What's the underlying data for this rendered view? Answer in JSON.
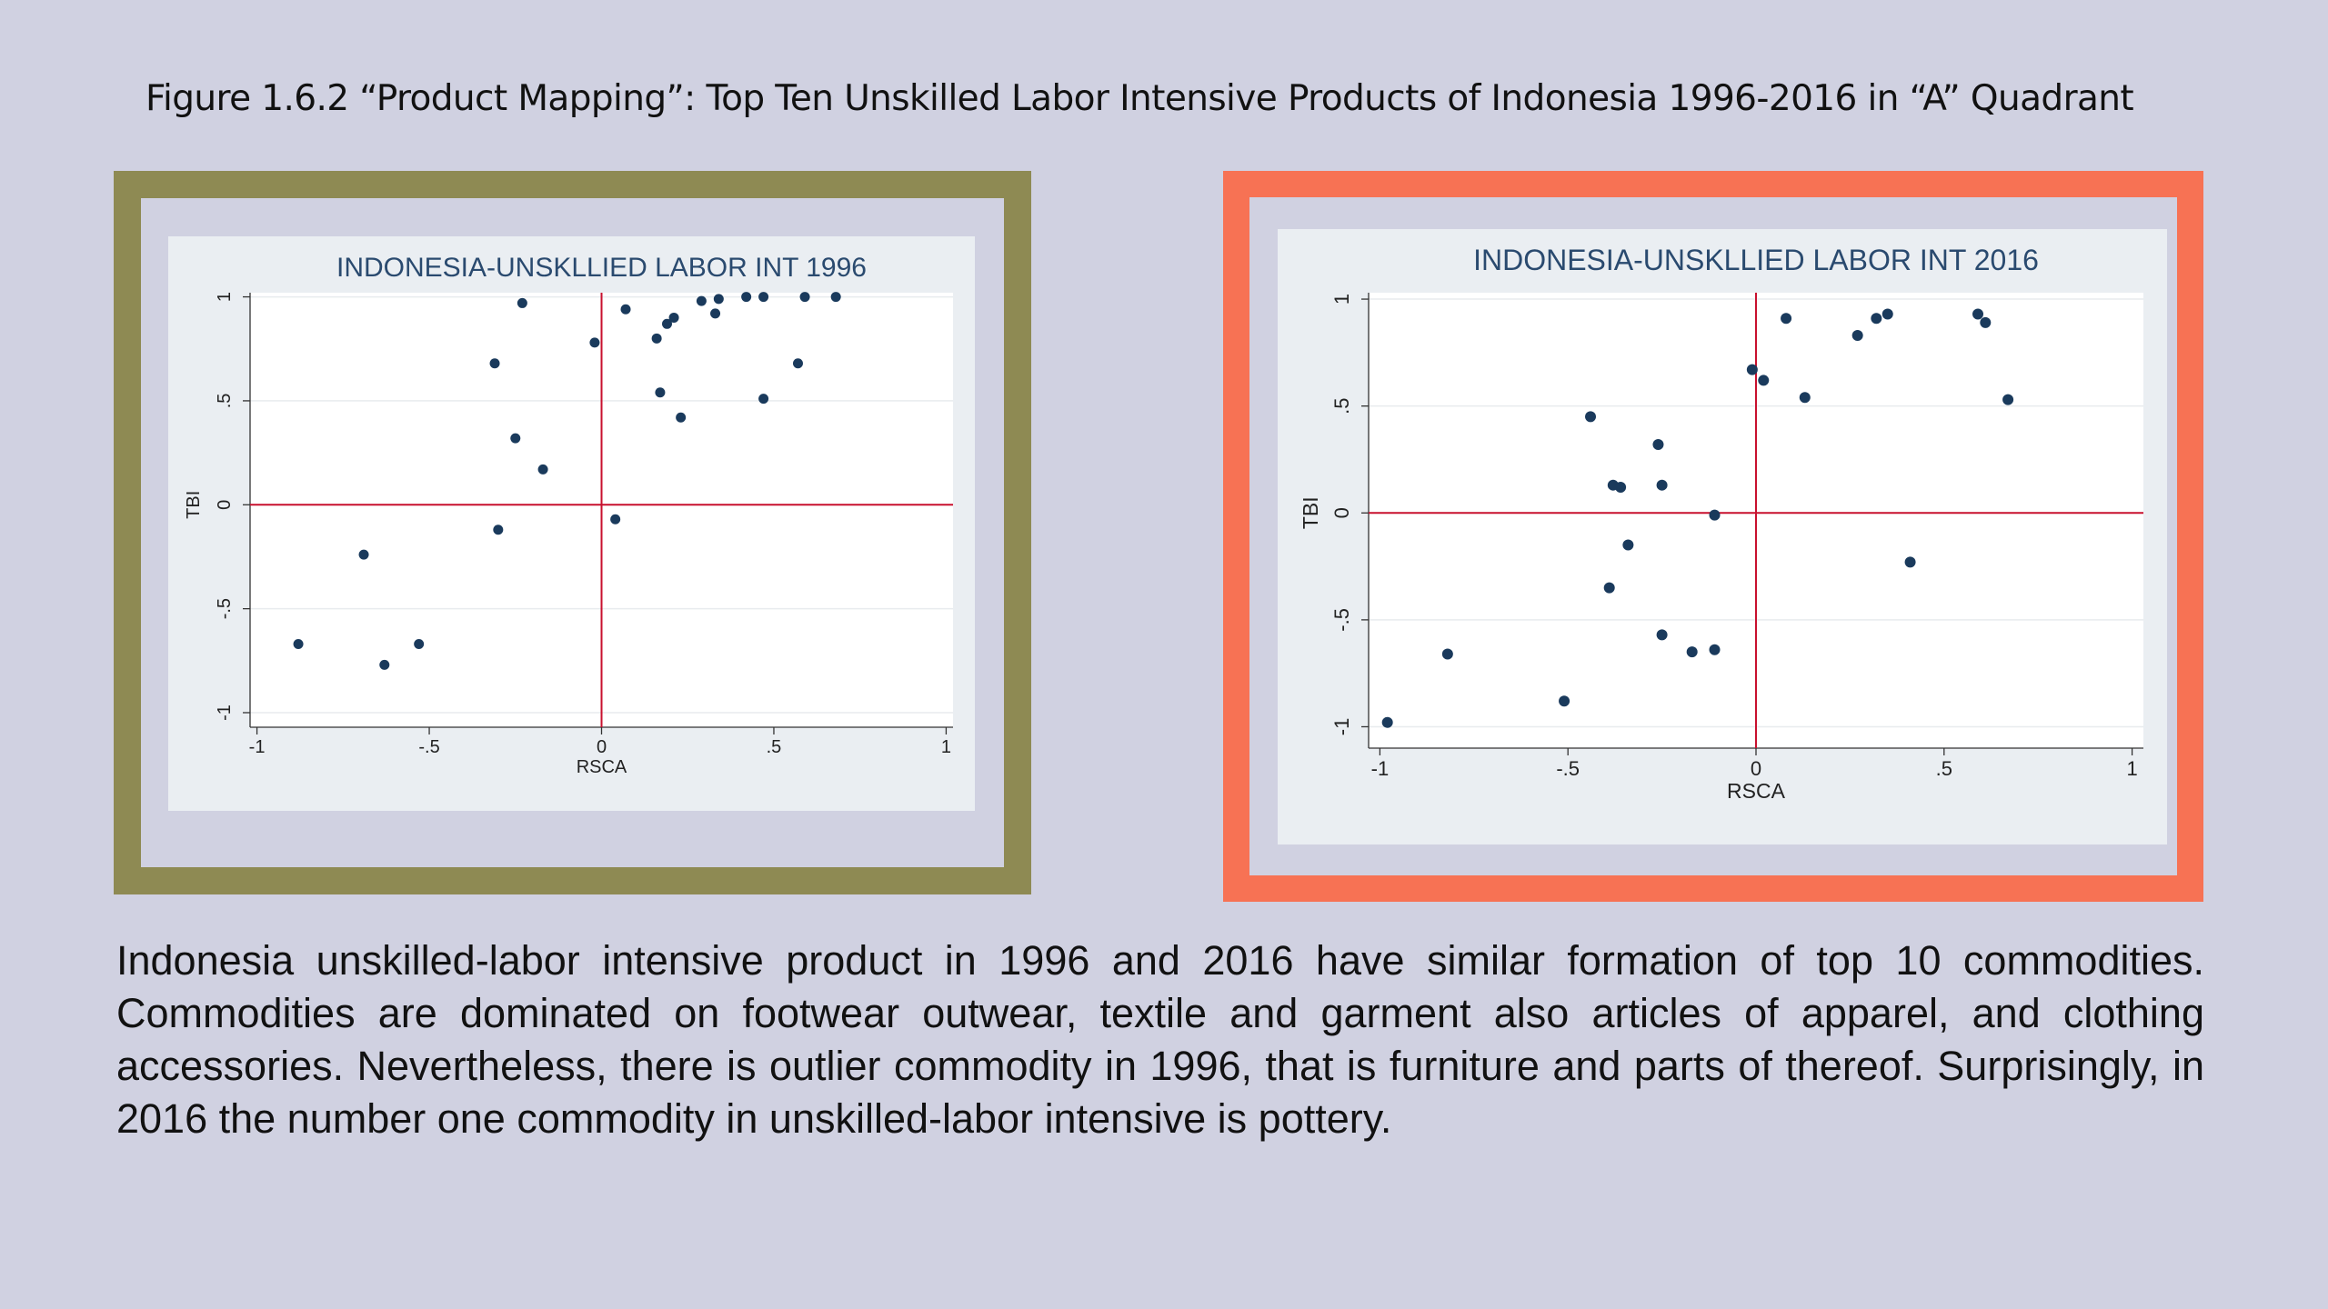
{
  "figure_title": "Figure 1.6.2 “Product Mapping”: Top Ten Unskilled Labor Intensive Products of Indonesia 1996-2016 in “A” Quadrant",
  "caption": "Indonesia unskilled-labor intensive product in 1996 and 2016 have similar formation of top 10 commodities. Commodities are dominated on footwear outwear, textile and garment also articles of apparel, and clothing accessories. Nevertheless, there is outlier commodity in 1996, that is furniture and parts of thereof. Surprisingly, in 2016 the number one commodity in unskilled-labor intensive is pottery.",
  "colors": {
    "page_background": "#d0d1e1",
    "frame_left": "#8e8a53",
    "frame_right": "#f77254",
    "plot_outer_background": "#eaeef2",
    "plot_area": "#ffffff",
    "marker": "#1a3a5c",
    "reference_lines": "#c8102e",
    "title_text": "#2a4a6f"
  },
  "chart_data": [
    {
      "type": "scatter",
      "title": "INDONESIA-UNSKLLIED LABOR INT 1996",
      "xlabel": "RSCA",
      "ylabel": "TBI",
      "xlim": [
        -1.02,
        1.02
      ],
      "ylim": [
        -1.07,
        1.02
      ],
      "xticks": [
        -1,
        -0.5,
        0,
        0.5,
        1
      ],
      "xtick_labels": [
        "-1",
        "-.5",
        "0",
        ".5",
        "1"
      ],
      "yticks": [
        -1,
        -0.5,
        0,
        0.5,
        1
      ],
      "ytick_labels": [
        "-1",
        "-.5",
        "0",
        ".5",
        "1"
      ],
      "reference_lines": {
        "x": 0,
        "y": 0
      },
      "grid": true,
      "points": [
        {
          "x": -0.88,
          "y": -0.67
        },
        {
          "x": -0.69,
          "y": -0.24
        },
        {
          "x": -0.63,
          "y": -0.77
        },
        {
          "x": -0.53,
          "y": -0.67
        },
        {
          "x": -0.31,
          "y": 0.68
        },
        {
          "x": -0.3,
          "y": -0.12
        },
        {
          "x": -0.25,
          "y": 0.32
        },
        {
          "x": -0.23,
          "y": 0.97
        },
        {
          "x": -0.17,
          "y": 0.17
        },
        {
          "x": -0.02,
          "y": 0.78
        },
        {
          "x": 0.04,
          "y": -0.07
        },
        {
          "x": 0.07,
          "y": 0.94
        },
        {
          "x": 0.16,
          "y": 0.8
        },
        {
          "x": 0.17,
          "y": 0.54
        },
        {
          "x": 0.19,
          "y": 0.87
        },
        {
          "x": 0.21,
          "y": 0.9
        },
        {
          "x": 0.23,
          "y": 0.42
        },
        {
          "x": 0.29,
          "y": 0.98
        },
        {
          "x": 0.33,
          "y": 0.92
        },
        {
          "x": 0.34,
          "y": 0.99
        },
        {
          "x": 0.42,
          "y": 1.0
        },
        {
          "x": 0.47,
          "y": 1.0
        },
        {
          "x": 0.47,
          "y": 0.51
        },
        {
          "x": 0.57,
          "y": 0.68
        },
        {
          "x": 0.59,
          "y": 1.0
        },
        {
          "x": 0.68,
          "y": 1.0
        }
      ]
    },
    {
      "type": "scatter",
      "title": "INDONESIA-UNSKLLIED LABOR INT 2016",
      "xlabel": "RSCA",
      "ylabel": "TBI",
      "xlim": [
        -1.03,
        1.03
      ],
      "ylim": [
        -1.1,
        1.03
      ],
      "xticks": [
        -1,
        -0.5,
        0,
        0.5,
        1
      ],
      "xtick_labels": [
        "-1",
        "-.5",
        "0",
        ".5",
        "1"
      ],
      "yticks": [
        -1,
        -0.5,
        0,
        0.5,
        1
      ],
      "ytick_labels": [
        "-1",
        "-.5",
        "0",
        ".5",
        "1"
      ],
      "reference_lines": {
        "x": 0,
        "y": 0
      },
      "grid": true,
      "points": [
        {
          "x": -0.98,
          "y": -0.98
        },
        {
          "x": -0.82,
          "y": -0.66
        },
        {
          "x": -0.51,
          "y": -0.88
        },
        {
          "x": -0.44,
          "y": 0.45
        },
        {
          "x": -0.39,
          "y": -0.35
        },
        {
          "x": -0.38,
          "y": 0.13
        },
        {
          "x": -0.36,
          "y": 0.12
        },
        {
          "x": -0.34,
          "y": -0.15
        },
        {
          "x": -0.26,
          "y": 0.32
        },
        {
          "x": -0.25,
          "y": 0.13
        },
        {
          "x": -0.25,
          "y": -0.57
        },
        {
          "x": -0.17,
          "y": -0.65
        },
        {
          "x": -0.11,
          "y": -0.64
        },
        {
          "x": -0.11,
          "y": -0.01
        },
        {
          "x": -0.01,
          "y": 0.67
        },
        {
          "x": 0.02,
          "y": 0.62
        },
        {
          "x": 0.08,
          "y": 0.91
        },
        {
          "x": 0.13,
          "y": 0.54
        },
        {
          "x": 0.27,
          "y": 0.83
        },
        {
          "x": 0.32,
          "y": 0.91
        },
        {
          "x": 0.35,
          "y": 0.93
        },
        {
          "x": 0.41,
          "y": -0.23
        },
        {
          "x": 0.59,
          "y": 0.93
        },
        {
          "x": 0.61,
          "y": 0.89
        },
        {
          "x": 0.67,
          "y": 0.53
        }
      ]
    }
  ]
}
